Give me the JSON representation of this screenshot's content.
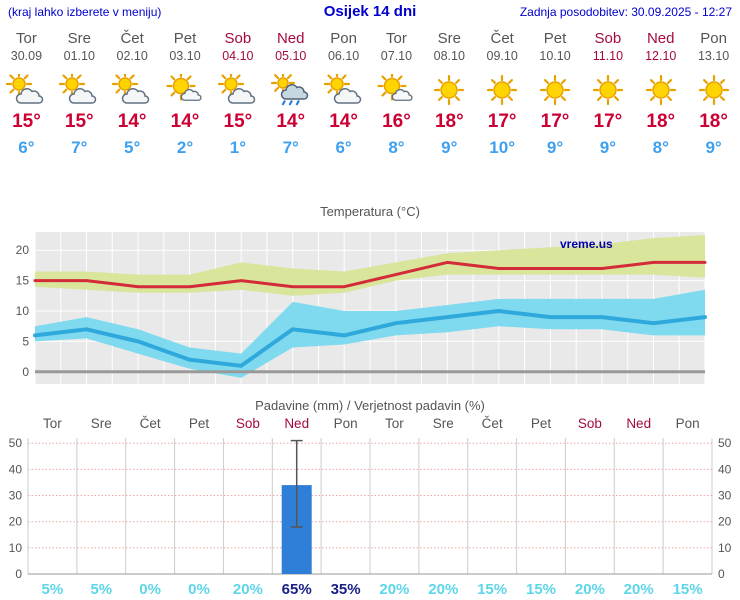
{
  "header": {
    "hint": "(kraj lahko izberete v meniju)",
    "title": "Osijek 14 dni",
    "updated": "Zadnja posodobitev: 30.09.2025 - 12:27"
  },
  "colors": {
    "link_blue": "#0000cc",
    "day_gray": "#555555",
    "weekend_red": "#a50a3c",
    "tmax_red": "#cc0033",
    "tmin_blue": "#3fa0f0",
    "chart_bg": "#e9e9e9",
    "grid_white": "#ffffff",
    "tmax_line": "#d42b3a",
    "tmax_band": "#d8e59b",
    "tmin_line": "#2fa8dc",
    "tmin_band": "#7fd9ef",
    "zero_line": "#999999",
    "bar_blue": "#2f7ed8",
    "precip_grid": "#f0a8a8",
    "day_grid": "#cccccc",
    "pct_cyan": "#5cd6e8",
    "pct_navy": "#171f86"
  },
  "days": [
    {
      "name": "Tor",
      "date": "30.09",
      "weekend": false,
      "icon": "partly-cloudy",
      "tmax": "15°",
      "tmin": "6°"
    },
    {
      "name": "Sre",
      "date": "01.10",
      "weekend": false,
      "icon": "partly-cloudy",
      "tmax": "15°",
      "tmin": "7°"
    },
    {
      "name": "Čet",
      "date": "02.10",
      "weekend": false,
      "icon": "partly-cloudy",
      "tmax": "14°",
      "tmin": "5°"
    },
    {
      "name": "Pet",
      "date": "03.10",
      "weekend": false,
      "icon": "sun-small-cloud",
      "tmax": "14°",
      "tmin": "2°"
    },
    {
      "name": "Sob",
      "date": "04.10",
      "weekend": true,
      "icon": "partly-cloudy",
      "tmax": "15°",
      "tmin": "1°"
    },
    {
      "name": "Ned",
      "date": "05.10",
      "weekend": true,
      "icon": "rain-cloud",
      "tmax": "14°",
      "tmin": "7°"
    },
    {
      "name": "Pon",
      "date": "06.10",
      "weekend": false,
      "icon": "partly-cloudy",
      "tmax": "14°",
      "tmin": "6°"
    },
    {
      "name": "Tor",
      "date": "07.10",
      "weekend": false,
      "icon": "sun-small-cloud",
      "tmax": "16°",
      "tmin": "8°"
    },
    {
      "name": "Sre",
      "date": "08.10",
      "weekend": false,
      "icon": "sunny",
      "tmax": "18°",
      "tmin": "9°"
    },
    {
      "name": "Čet",
      "date": "09.10",
      "weekend": false,
      "icon": "sunny",
      "tmax": "17°",
      "tmin": "10°"
    },
    {
      "name": "Pet",
      "date": "10.10",
      "weekend": false,
      "icon": "sunny",
      "tmax": "17°",
      "tmin": "9°"
    },
    {
      "name": "Sob",
      "date": "11.10",
      "weekend": true,
      "icon": "sunny",
      "tmax": "17°",
      "tmin": "9°"
    },
    {
      "name": "Ned",
      "date": "12.10",
      "weekend": true,
      "icon": "sunny",
      "tmax": "18°",
      "tmin": "8°"
    },
    {
      "name": "Pon",
      "date": "13.10",
      "weekend": false,
      "icon": "sunny",
      "tmax": "18°",
      "tmin": "9°"
    }
  ],
  "chart_data": [
    {
      "type": "line",
      "title": "Temperatura (°C)",
      "watermark": "vreme.us",
      "categories": [
        "Tor",
        "Sre",
        "Čet",
        "Pet",
        "Sob",
        "Ned",
        "Pon",
        "Tor",
        "Sre",
        "Čet",
        "Pet",
        "Sob",
        "Ned",
        "Pon"
      ],
      "ylim": [
        -2,
        23
      ],
      "yticks": [
        0,
        5,
        10,
        15,
        20
      ],
      "grid": true,
      "series": [
        {
          "name": "tmax",
          "values": [
            15,
            15,
            14,
            14,
            15,
            14,
            14,
            16,
            18,
            17,
            17,
            17,
            18,
            18
          ]
        },
        {
          "name": "tmax_upper",
          "values": [
            16.5,
            16.5,
            16,
            16,
            18,
            17,
            16.5,
            18,
            19.5,
            20,
            20.5,
            21,
            22,
            22.5
          ]
        },
        {
          "name": "tmax_lower",
          "values": [
            14,
            13.5,
            13,
            13,
            13.5,
            12.5,
            13,
            15,
            16,
            16,
            16,
            16,
            16,
            15.5
          ]
        },
        {
          "name": "tmin",
          "values": [
            6,
            7,
            5,
            2,
            1,
            7,
            6,
            8,
            9,
            10,
            9,
            9,
            8,
            9
          ]
        },
        {
          "name": "tmin_upper",
          "values": [
            7.5,
            9,
            7,
            4,
            3,
            11.5,
            10,
            10,
            11,
            12,
            12,
            12,
            12,
            13.5
          ]
        },
        {
          "name": "tmin_lower",
          "values": [
            5,
            5.5,
            3,
            0.5,
            -1,
            4,
            4.5,
            6,
            6.5,
            7.5,
            7,
            7,
            6,
            6
          ]
        }
      ]
    },
    {
      "type": "bar",
      "title": "Padavine (mm) / Verjetnost padavin (%)",
      "categories": [
        "Tor",
        "Sre",
        "Čet",
        "Pet",
        "Sob",
        "Ned",
        "Pon",
        "Tor",
        "Sre",
        "Čet",
        "Pet",
        "Sob",
        "Ned",
        "Pon"
      ],
      "ylim": [
        0,
        52
      ],
      "yticks": [
        0,
        10,
        20,
        30,
        40,
        50
      ],
      "values": [
        0,
        0,
        0,
        0,
        0,
        34,
        0,
        0,
        0,
        0,
        0,
        0,
        0,
        0
      ],
      "whisker": {
        "day_index": 5,
        "low": 18,
        "high": 51
      },
      "probabilities": [
        {
          "label": "5%",
          "high": false
        },
        {
          "label": "5%",
          "high": false
        },
        {
          "label": "0%",
          "high": false
        },
        {
          "label": "0%",
          "high": false
        },
        {
          "label": "20%",
          "high": false
        },
        {
          "label": "65%",
          "high": true
        },
        {
          "label": "35%",
          "high": true
        },
        {
          "label": "20%",
          "high": false
        },
        {
          "label": "20%",
          "high": false
        },
        {
          "label": "15%",
          "high": false
        },
        {
          "label": "15%",
          "high": false
        },
        {
          "label": "20%",
          "high": false
        },
        {
          "label": "20%",
          "high": false
        },
        {
          "label": "15%",
          "high": false
        }
      ]
    }
  ]
}
